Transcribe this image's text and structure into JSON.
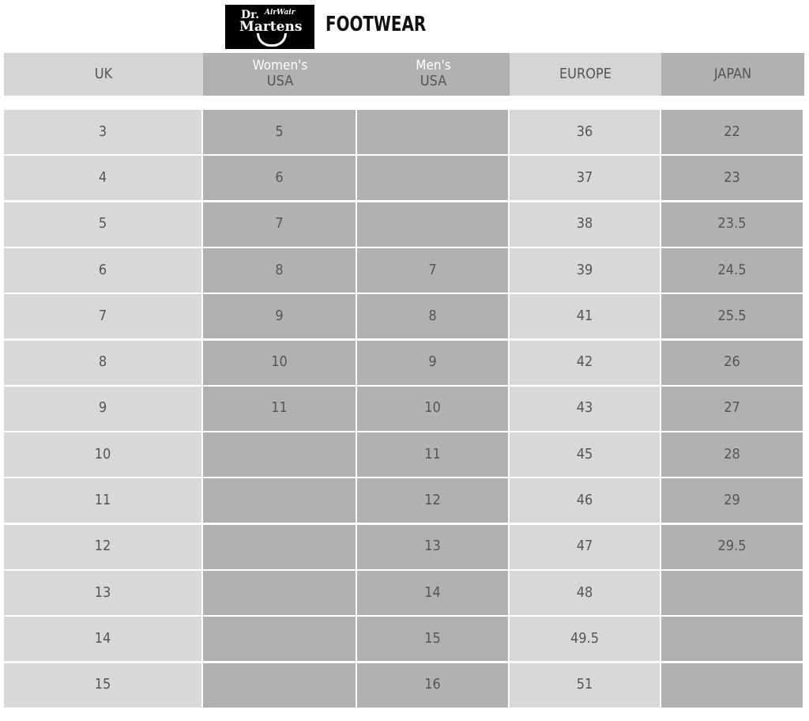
{
  "brand": {
    "logo_text": "Dr. AirWair Martens",
    "title": "FOOTWEAR"
  },
  "headers": [
    {
      "line1": "",
      "line2": "UK"
    },
    {
      "line1": "Women's",
      "line2": "USA"
    },
    {
      "line1": "Men's",
      "line2": "USA"
    },
    {
      "line1": "",
      "line2": "EUROPE"
    },
    {
      "line1": "",
      "line2": "JAPAN"
    }
  ],
  "rows": [
    [
      "3",
      "5",
      "",
      "36",
      "22"
    ],
    [
      "4",
      "6",
      "",
      "37",
      "23"
    ],
    [
      "5",
      "7",
      "",
      "38",
      "23.5"
    ],
    [
      "6",
      "8",
      "7",
      "39",
      "24.5"
    ],
    [
      "7",
      "9",
      "8",
      "41",
      "25.5"
    ],
    [
      "8",
      "10",
      "9",
      "42",
      "26"
    ],
    [
      "9",
      "11",
      "10",
      "43",
      "27"
    ],
    [
      "10",
      "",
      "11",
      "45",
      "28"
    ],
    [
      "11",
      "",
      "12",
      "46",
      "29"
    ],
    [
      "12",
      "",
      "13",
      "47",
      "29.5"
    ],
    [
      "13",
      "",
      "14",
      "48",
      ""
    ],
    [
      "14",
      "",
      "15",
      "49.5",
      ""
    ],
    [
      "15",
      "",
      "16",
      "51",
      ""
    ]
  ]
}
